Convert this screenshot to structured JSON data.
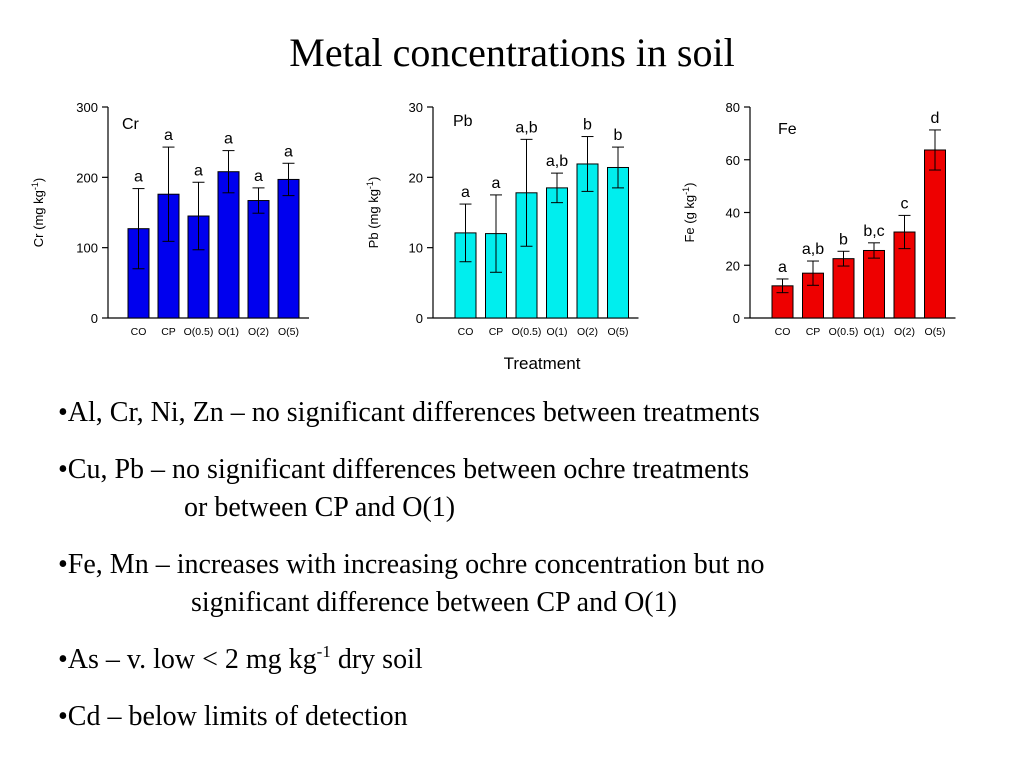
{
  "slide": {
    "title": "Metal concentrations in soil",
    "x_axis_title": "Treatment",
    "bullets": [
      {
        "line1": "•Al, Cr, Ni, Zn – no significant differences between treatments"
      },
      {
        "line1": "•Cu, Pb – no significant differences between ochre treatments",
        "line2": "or between CP and O(1)"
      },
      {
        "line1": "•Fe, Mn – increases with increasing ochre concentration but no",
        "line2": "significant difference between CP and O(1)"
      },
      {
        "pre": "•As – v. low < 2 mg kg",
        "sup": "-1",
        "post": " dry soil"
      },
      {
        "line1": "•Cd – below limits of detection"
      }
    ]
  },
  "chart_data": [
    {
      "type": "bar",
      "title": "Cr",
      "ylabel_main": "Cr (mg kg",
      "ylabel_sup": "-1",
      "ylabel_end": ")",
      "ylim": [
        0,
        300
      ],
      "yticks": [
        0,
        100,
        200,
        300
      ],
      "color": "#0000ee",
      "categories": [
        "CO",
        "CP",
        "O(0.5)",
        "O(1)",
        "O(2)",
        "O(5)"
      ],
      "values": [
        127,
        176,
        145,
        208,
        167,
        197
      ],
      "error": [
        57,
        67,
        48,
        30,
        18,
        23
      ],
      "letters": [
        "a",
        "a",
        "a",
        "a",
        "a",
        "a"
      ]
    },
    {
      "type": "bar",
      "title": "Pb",
      "ylabel_main": "Pb (mg kg",
      "ylabel_sup": "-1",
      "ylabel_end": ")",
      "ylim": [
        0,
        30
      ],
      "yticks": [
        0,
        10,
        20,
        30
      ],
      "color": "#00eeee",
      "categories": [
        "CO",
        "CP",
        "O(0.5)",
        "O(1)",
        "O(2)",
        "O(5)"
      ],
      "values": [
        12.1,
        12.0,
        17.8,
        18.5,
        21.9,
        21.4
      ],
      "error": [
        4.1,
        5.5,
        7.6,
        2.1,
        3.9,
        2.9
      ],
      "letters": [
        "a",
        "a",
        "a,b",
        "a,b",
        "b",
        "b"
      ]
    },
    {
      "type": "bar",
      "title": "Fe",
      "ylabel_main": "Fe (g kg",
      "ylabel_sup": "-1",
      "ylabel_end": ")",
      "ylim": [
        0,
        80
      ],
      "yticks": [
        0,
        20,
        40,
        60,
        80
      ],
      "color": "#ee0000",
      "categories": [
        "CO",
        "CP",
        "O(0.5)",
        "O(1)",
        "O(2)",
        "O(5)"
      ],
      "values": [
        12.2,
        17.0,
        22.5,
        25.6,
        32.6,
        63.7
      ],
      "error": [
        2.6,
        4.6,
        2.8,
        2.9,
        6.3,
        7.6
      ],
      "letters": [
        "a",
        "a,b",
        "b",
        "b,c",
        "c",
        "d"
      ]
    }
  ]
}
